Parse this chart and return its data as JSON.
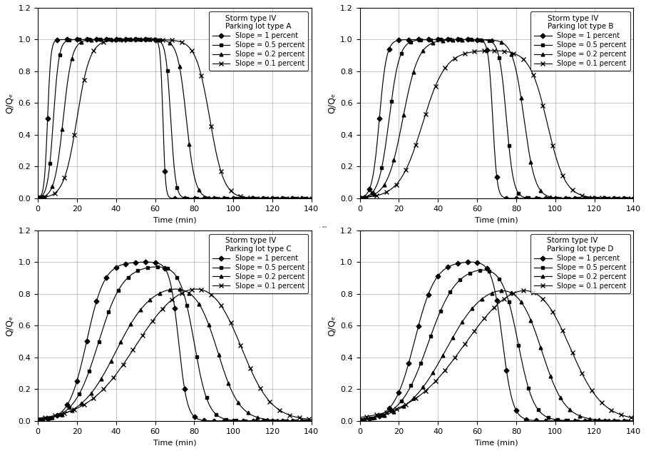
{
  "subplots": [
    {
      "title_line1": "Storm type IV",
      "title_line2": "Parking lot type A",
      "slopes": [
        {
          "rise_k": 1.2,
          "rise_t0": 5,
          "fall_k": 1.5,
          "fall_t0": 64,
          "peak": 1.0
        },
        {
          "rise_k": 0.7,
          "rise_t0": 8,
          "fall_k": 0.8,
          "fall_t0": 68,
          "peak": 1.0
        },
        {
          "rise_k": 0.45,
          "rise_t0": 13,
          "fall_k": 0.45,
          "fall_t0": 76,
          "peak": 1.0
        },
        {
          "rise_k": 0.3,
          "rise_t0": 20,
          "fall_k": 0.28,
          "fall_t0": 88,
          "peak": 1.0
        }
      ]
    },
    {
      "title_line1": "Storm type IV",
      "title_line2": "Parking lot type B",
      "slopes": [
        {
          "rise_k": 0.55,
          "rise_t0": 10,
          "fall_k": 0.9,
          "fall_t0": 68,
          "peak": 1.0
        },
        {
          "rise_k": 0.38,
          "rise_t0": 15,
          "fall_k": 0.55,
          "fall_t0": 75,
          "peak": 1.0
        },
        {
          "rise_k": 0.25,
          "rise_t0": 22,
          "fall_k": 0.35,
          "fall_t0": 84,
          "peak": 1.0
        },
        {
          "rise_k": 0.17,
          "rise_t0": 32,
          "fall_k": 0.22,
          "fall_t0": 96,
          "peak": 0.93
        }
      ]
    },
    {
      "title_line1": "Storm type IV",
      "title_line2": "Parking lot type C",
      "slopes": [
        {
          "rise_k": 0.22,
          "rise_t0": 25,
          "fall_k": 0.45,
          "fall_t0": 72,
          "peak": 1.0
        },
        {
          "rise_k": 0.16,
          "rise_t0": 31,
          "fall_k": 0.28,
          "fall_t0": 80,
          "peak": 0.97
        },
        {
          "rise_k": 0.11,
          "rise_t0": 40,
          "fall_k": 0.18,
          "fall_t0": 92,
          "peak": 0.83
        },
        {
          "rise_k": 0.08,
          "rise_t0": 50,
          "fall_k": 0.13,
          "fall_t0": 104,
          "peak": 0.83
        }
      ]
    },
    {
      "title_line1": "Storm type IV",
      "title_line2": "Parking lot type D",
      "slopes": [
        {
          "rise_k": 0.19,
          "rise_t0": 28,
          "fall_k": 0.38,
          "fall_t0": 73,
          "peak": 1.0
        },
        {
          "rise_k": 0.14,
          "rise_t0": 35,
          "fall_k": 0.25,
          "fall_t0": 81,
          "peak": 0.95
        },
        {
          "rise_k": 0.1,
          "rise_t0": 44,
          "fall_k": 0.17,
          "fall_t0": 93,
          "peak": 0.82
        },
        {
          "rise_k": 0.07,
          "rise_t0": 54,
          "fall_k": 0.12,
          "fall_t0": 107,
          "peak": 0.82
        }
      ]
    }
  ],
  "plateau_cap": [
    1.0,
    1.0,
    1.05,
    1.05
  ],
  "legend_labels": [
    "Slope = 1 percent",
    "Slope = 0.5 percent",
    "Slope = 0.2 percent",
    "Slope = 0.1 percent"
  ],
  "markers": [
    "D",
    "s",
    "^",
    "x"
  ],
  "marker_sizes": [
    3.5,
    3.5,
    3.5,
    4.0
  ],
  "xlabel": "Time (min)",
  "ylabel": "Q/Qₑ",
  "xlim": [
    0,
    140
  ],
  "ylim": [
    0,
    1.2
  ],
  "xticks": [
    0,
    20,
    40,
    60,
    80,
    100,
    120,
    140
  ],
  "yticks": [
    0,
    0.2,
    0.4,
    0.6,
    0.8,
    1.0,
    1.2
  ]
}
